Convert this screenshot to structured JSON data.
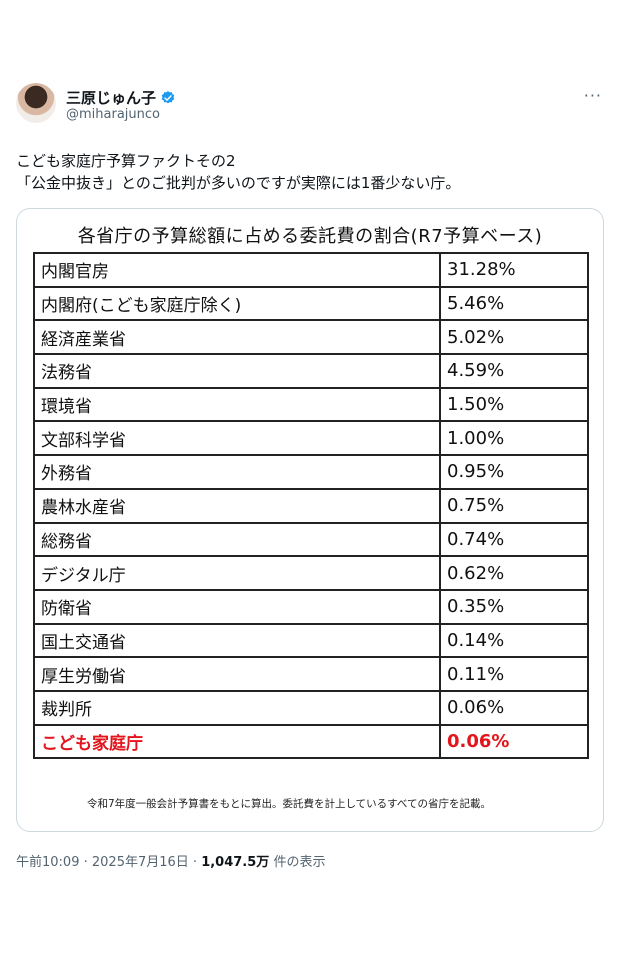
{
  "post": {
    "display_name": "三原じゅん子",
    "handle": "@miharajunco",
    "more_label": "···",
    "text": "こども家庭庁予算ファクトその2\n「公金中抜き」とのご批判が多いのですが実際には1番少ない庁。"
  },
  "image": {
    "title": "各省庁の予算総額に占める委託費の割合(R7予算ベース)",
    "rows": [
      {
        "ministry": "内閣官房",
        "ratio": "31.28%"
      },
      {
        "ministry": "内閣府(こども家庭庁除く)",
        "ratio": "5.46%"
      },
      {
        "ministry": "経済産業省",
        "ratio": "5.02%"
      },
      {
        "ministry": "法務省",
        "ratio": "4.59%"
      },
      {
        "ministry": "環境省",
        "ratio": "1.50%"
      },
      {
        "ministry": "文部科学省",
        "ratio": "1.00%"
      },
      {
        "ministry": "外務省",
        "ratio": "0.95%"
      },
      {
        "ministry": "農林水産省",
        "ratio": "0.75%"
      },
      {
        "ministry": "総務省",
        "ratio": "0.74%"
      },
      {
        "ministry": "デジタル庁",
        "ratio": "0.62%"
      },
      {
        "ministry": "防衛省",
        "ratio": "0.35%"
      },
      {
        "ministry": "国土交通省",
        "ratio": "0.14%"
      },
      {
        "ministry": "厚生労働省",
        "ratio": "0.11%"
      },
      {
        "ministry": "裁判所",
        "ratio": "0.06%"
      },
      {
        "ministry": "こども家庭庁",
        "ratio": "0.06%"
      }
    ],
    "highlight_color": "#e3141b",
    "footnote": "令和7年度一般会計予算書をもとに算出。委託費を計上しているすべての省庁を記載。"
  },
  "meta": {
    "time": "午前10:09",
    "date": "2025年7月16日",
    "views": "1,047.5万",
    "views_suffix": "件の表示"
  },
  "colors": {
    "verified": "#1d9bf0",
    "text_secondary": "#536471"
  }
}
